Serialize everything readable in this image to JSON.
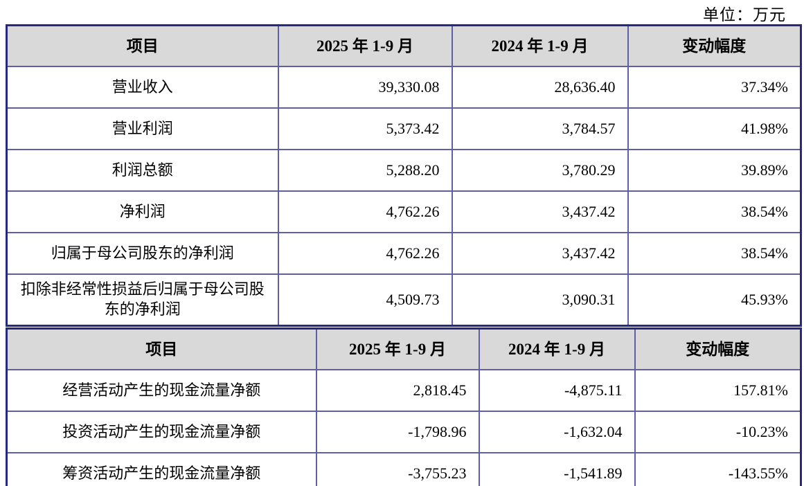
{
  "unit_label": "单位：万元",
  "income_table": {
    "headers": [
      "项目",
      "2025 年 1-9 月",
      "2024 年 1-9 月",
      "变动幅度"
    ],
    "rows": [
      {
        "item": "营业收入",
        "v2025": "39,330.08",
        "v2024": "28,636.40",
        "change": "37.34%"
      },
      {
        "item": "营业利润",
        "v2025": "5,373.42",
        "v2024": "3,784.57",
        "change": "41.98%"
      },
      {
        "item": "利润总额",
        "v2025": "5,288.20",
        "v2024": "3,780.29",
        "change": "39.89%"
      },
      {
        "item": "净利润",
        "v2025": "4,762.26",
        "v2024": "3,437.42",
        "change": "38.54%"
      },
      {
        "item": "归属于母公司股东的净利润",
        "v2025": "4,762.26",
        "v2024": "3,437.42",
        "change": "38.54%"
      },
      {
        "item": "扣除非经常性损益后归属于母公司股东的净利润",
        "v2025": "4,509.73",
        "v2024": "3,090.31",
        "change": "45.93%"
      }
    ]
  },
  "cashflow_table": {
    "headers": [
      "项目",
      "2025 年 1-9 月",
      "2024 年 1-9 月",
      "变动幅度"
    ],
    "rows": [
      {
        "item": "经营活动产生的现金流量净额",
        "v2025": "2,818.45",
        "v2024": "-4,875.11",
        "change": "157.81%"
      },
      {
        "item": "投资活动产生的现金流量净额",
        "v2025": "-1,798.96",
        "v2024": "-1,632.04",
        "change": "-10.23%"
      },
      {
        "item": "筹资活动产生的现金流量净额",
        "v2025": "-3,755.23",
        "v2024": "-1,541.89",
        "change": "-143.55%"
      }
    ]
  }
}
